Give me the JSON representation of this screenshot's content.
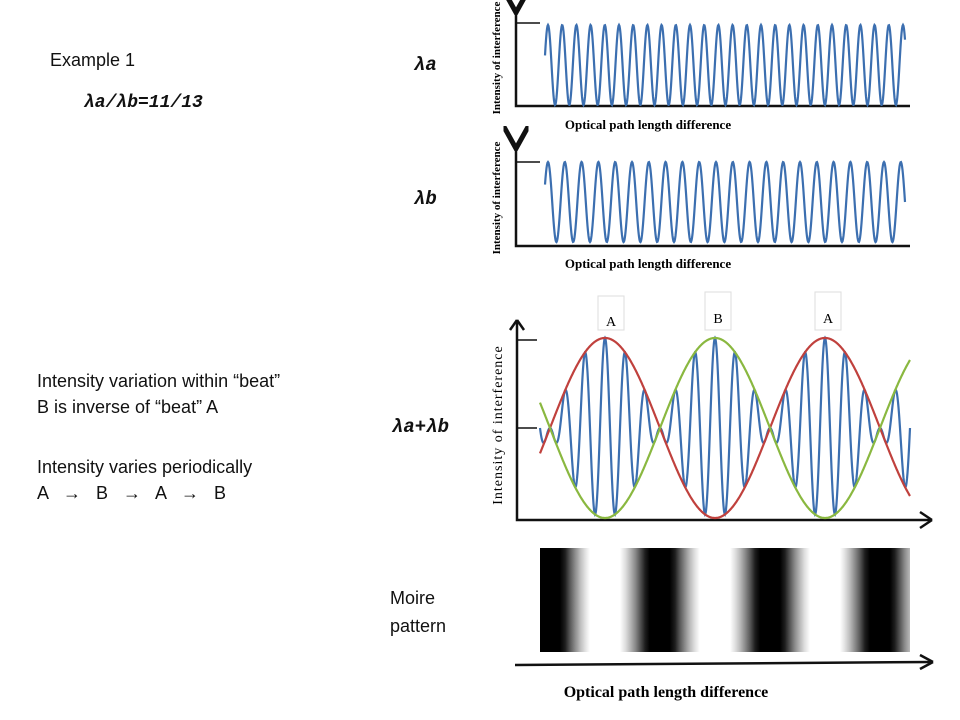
{
  "header": {
    "title": "Example 1",
    "ratio": "λa/λb=11/13"
  },
  "notes": [
    "Intensity variation within “beat”",
    "B is inverse of “beat” A",
    "Intensity varies periodically",
    "A → B → A → B"
  ],
  "panels": [
    {
      "label": "λa",
      "y_axis": "Intensity of interference",
      "x_axis": "Optical path length difference"
    },
    {
      "label": "λb",
      "y_axis": "Intensity of interference",
      "x_axis": "Optical path length difference"
    },
    {
      "label": "λa+λb",
      "y_axis": "Intensity of interference",
      "beats": [
        "A",
        "B",
        "A"
      ]
    },
    {
      "label": "Moire pattern",
      "x_axis": "Optical path length difference"
    }
  ]
}
